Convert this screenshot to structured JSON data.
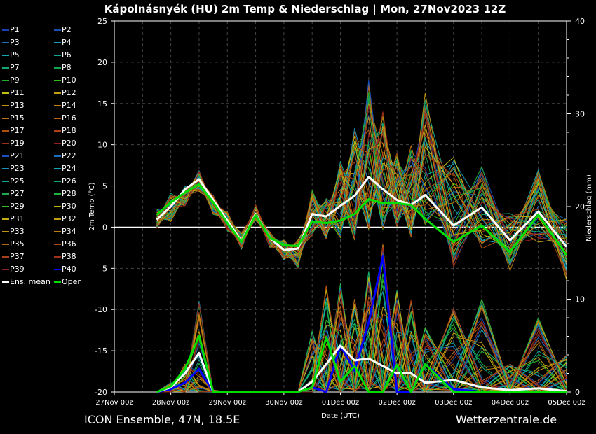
{
  "header": {
    "title": "Kápolnásnyék  (HU)  2m Temp & Niederschlag | Mon, 27Nov2023 12Z"
  },
  "footer": {
    "model": "ICON Ensemble, 47N, 18.5E",
    "source": "Wetterzentrale.de"
  },
  "legend": {
    "members": [
      "P1",
      "P2",
      "P3",
      "P4",
      "P5",
      "P6",
      "P7",
      "P8",
      "P9",
      "P10",
      "P11",
      "P12",
      "P13",
      "P14",
      "P15",
      "P16",
      "P17",
      "P18",
      "P19",
      "P20",
      "P21",
      "P22",
      "P23",
      "P24",
      "P25",
      "P26",
      "P27",
      "P28",
      "P29",
      "P30",
      "P31",
      "P32",
      "P33",
      "P34",
      "P35",
      "P36",
      "P37",
      "P38",
      "P39",
      "P40"
    ],
    "member_colors": [
      "#1a3fb0",
      "#1a4fb0",
      "#1a70b8",
      "#1a9ab8",
      "#10a8b0",
      "#10a890",
      "#10a870",
      "#10a850",
      "#20b030",
      "#30c010",
      "#c0c010",
      "#c0a010",
      "#c09010",
      "#c08010",
      "#c07010",
      "#b86010",
      "#b05010",
      "#b04018",
      "#a03018",
      "#902020",
      "#1a50c0",
      "#1a70c0",
      "#1a90b8",
      "#10a8b8",
      "#10a890",
      "#10a870",
      "#20a850",
      "#20b040",
      "#30c020",
      "#c0b010",
      "#c0b010",
      "#c0a010",
      "#c09010",
      "#c08010",
      "#b86810",
      "#b05010",
      "#a84018",
      "#a03018",
      "#902020",
      "#0000ff"
    ],
    "mean_label": "Ens. mean",
    "oper_label": "Oper",
    "mean_color": "#ffffff",
    "oper_color": "#00e000"
  },
  "chart_data": {
    "type": "line",
    "title": "Kápolnásnyék  (HU)  2m Temp & Niederschlag | Mon, 27Nov2023 12Z",
    "xlabel": "Date (UTC)",
    "ylabel": "2m Temp (°C)",
    "y2label": "Niederschlag (mm)",
    "ylim": [
      -20,
      25
    ],
    "y2lim": [
      0,
      40
    ],
    "yticks": [
      "-20",
      "-15",
      "-10",
      "-5",
      "0",
      "5",
      "10",
      "15",
      "20",
      "25"
    ],
    "y2ticks": [
      "0",
      "10",
      "20",
      "30",
      "40"
    ],
    "xrange_hours": [
      0,
      192
    ],
    "xticks": [
      "27Nov 00z",
      "28Nov 00z",
      "29Nov 00z",
      "30Nov 00z",
      "01Dec 00z",
      "02Dec 00z",
      "03Dec 00z",
      "04Dec 00z",
      "05Dec 00z"
    ],
    "grid": true,
    "step_hours": [
      18,
      24,
      30,
      36,
      42,
      48,
      54,
      60,
      66,
      72,
      78,
      84,
      90,
      96,
      102,
      108,
      114,
      120,
      126,
      132,
      144,
      156,
      168,
      180,
      192
    ],
    "temp": {
      "mean": [
        0.9,
        2.5,
        4.6,
        5.8,
        3.3,
        0.8,
        -1.7,
        1.6,
        -1.3,
        -2.8,
        -2.6,
        1.6,
        1.3,
        2.6,
        3.8,
        6.1,
        4.6,
        3.3,
        2.7,
        3.9,
        0.2,
        2.4,
        -1.6,
        1.9,
        -2.4
      ],
      "oper": [
        1.5,
        3.0,
        4.2,
        5.2,
        3.0,
        0.5,
        -1.8,
        1.5,
        -1.3,
        -2.2,
        -2.3,
        0.7,
        0.5,
        0.8,
        1.6,
        3.4,
        2.9,
        2.9,
        2.7,
        1.0,
        -1.8,
        0.2,
        -3.0,
        1.5,
        -3.4
      ],
      "member_min": [
        -0.3,
        0.5,
        2.5,
        4.3,
        1.5,
        -0.5,
        -2.7,
        0.8,
        -2.5,
        -4.0,
        -5.0,
        -1.0,
        -1.5,
        -1.5,
        -2.0,
        -1.0,
        -1.0,
        -0.5,
        -2.0,
        -1.0,
        -5.5,
        -3.0,
        -5.5,
        -2.0,
        -6.5
      ],
      "member_max": [
        2.2,
        4.2,
        5.0,
        7.0,
        4.0,
        2.0,
        -0.5,
        2.8,
        -0.5,
        -1.5,
        -1.5,
        4.5,
        3.5,
        8.0,
        12.0,
        17.8,
        14.0,
        9.0,
        10.0,
        16.5,
        8.8,
        7.7,
        2.0,
        7.5,
        1.5
      ]
    },
    "precip": {
      "mean": [
        0,
        0.5,
        2.0,
        4.2,
        0,
        0,
        0,
        0,
        0,
        0,
        0,
        1.1,
        3.0,
        5.0,
        3.4,
        3.6,
        2.8,
        2.0,
        2.0,
        1.0,
        1.3,
        0.5,
        0.2,
        0.4,
        0.1
      ],
      "oper": [
        0,
        0.6,
        2.5,
        6.0,
        0,
        0,
        0,
        0,
        0,
        0,
        0,
        0.5,
        5.9,
        1.1,
        2.8,
        0,
        0,
        2.9,
        0,
        3.0,
        0,
        0,
        0,
        0,
        0
      ],
      "p40": [
        0,
        0.3,
        1.0,
        2.5,
        0,
        0,
        0,
        0,
        0,
        0,
        0,
        0.5,
        0,
        5.0,
        2.3,
        7.5,
        14.6,
        0,
        0,
        3.0,
        0.3,
        0,
        0,
        0,
        0
      ],
      "member_max": [
        0,
        1.0,
        3.0,
        9.8,
        0.2,
        0,
        0,
        0,
        0,
        0,
        0,
        6.6,
        11.5,
        11.7,
        10.0,
        13.0,
        16.0,
        11.0,
        10.0,
        7.0,
        9.0,
        10.0,
        3.0,
        8.0,
        4.0
      ]
    }
  }
}
